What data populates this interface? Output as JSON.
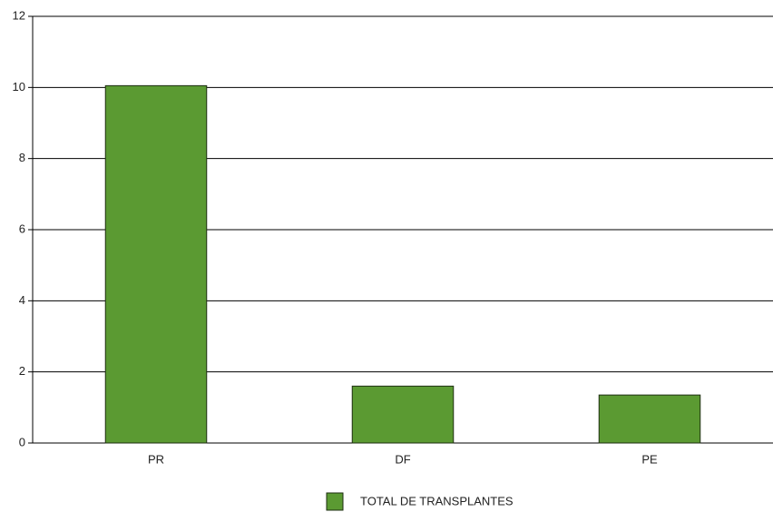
{
  "chart_data": {
    "type": "bar",
    "categories": [
      "PR",
      "DF",
      "PE"
    ],
    "series": [
      {
        "name": "TOTAL DE TRANSPLANTES",
        "color": "#5b9a32",
        "values": [
          10.05,
          1.6,
          1.35
        ]
      }
    ],
    "ylim": [
      0,
      12
    ],
    "yticks": [
      0,
      2,
      4,
      6,
      8,
      10,
      12
    ],
    "grid": true,
    "legend": "bottom"
  }
}
